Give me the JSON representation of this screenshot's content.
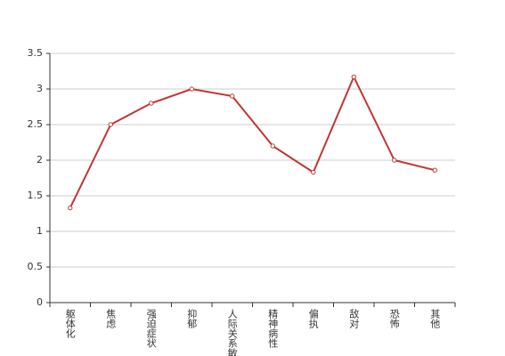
{
  "chart_data": {
    "type": "line",
    "categories": [
      "躯体化",
      "焦虑",
      "强迫症状",
      "抑郁",
      "人际关系敏感",
      "精神病性",
      "偏执",
      "敌对",
      "恐怖",
      "其他"
    ],
    "series": [
      {
        "name": "",
        "color": "#c23531",
        "values": [
          1.33,
          2.5,
          2.8,
          3.0,
          2.9,
          2.2,
          1.83,
          3.17,
          2.0,
          1.86
        ]
      }
    ],
    "ylim": [
      0,
      3.5
    ],
    "yticks": [
      0,
      0.5,
      1,
      1.5,
      2,
      2.5,
      3,
      3.5
    ],
    "grid": true
  }
}
